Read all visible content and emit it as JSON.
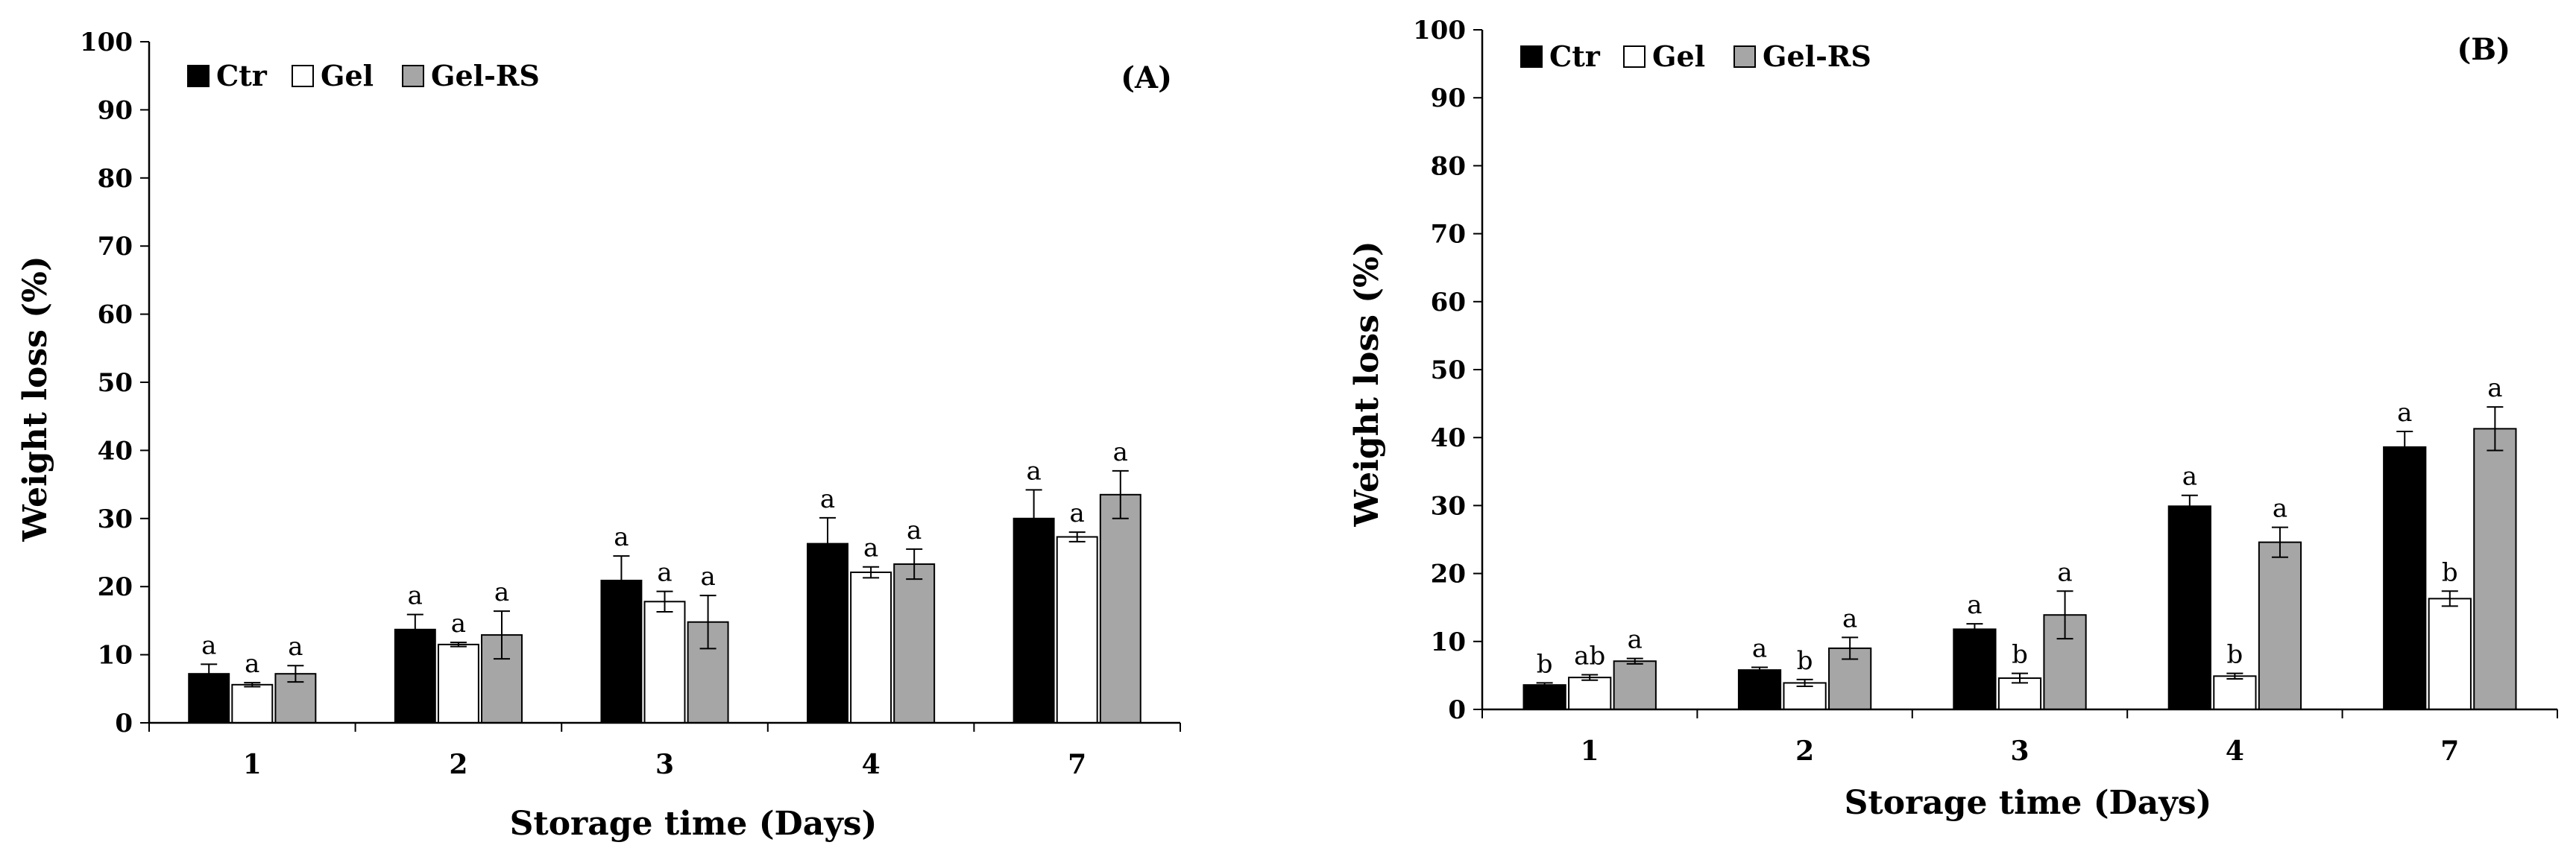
{
  "colors": {
    "Ctr": "#000000",
    "Gel": "#ffffff",
    "Gel-RS": "#a6a6a6",
    "axis": "#000000",
    "background": "#ffffff"
  },
  "chart_data": [
    {
      "type": "bar",
      "panel_label": "(A)",
      "categories": [
        "1",
        "2",
        "3",
        "4",
        "7"
      ],
      "xlabel": "Storage time (Days)",
      "ylabel": "Weight loss (%)",
      "ylim": [
        0,
        100
      ],
      "yticks": [
        0,
        10,
        20,
        30,
        40,
        50,
        60,
        70,
        80,
        90,
        100
      ],
      "grid": false,
      "legend_position": "top-left",
      "series": [
        {
          "name": "Ctr",
          "values": [
            7.2,
            13.7,
            20.9,
            26.3,
            30.0
          ],
          "errors": [
            1.4,
            2.2,
            3.6,
            3.8,
            4.2
          ],
          "labels": [
            "a",
            "a",
            "a",
            "a",
            "a"
          ]
        },
        {
          "name": "Gel",
          "values": [
            5.6,
            11.5,
            17.8,
            22.1,
            27.3
          ],
          "errors": [
            0.3,
            0.3,
            1.5,
            0.8,
            0.7
          ],
          "labels": [
            "a",
            "a",
            "a",
            "a",
            "a"
          ]
        },
        {
          "name": "Gel-RS",
          "values": [
            7.2,
            12.9,
            14.8,
            23.3,
            33.5
          ],
          "errors": [
            1.2,
            3.5,
            3.9,
            2.2,
            3.5
          ],
          "labels": [
            "a",
            "a",
            "a",
            "a",
            "a"
          ]
        }
      ]
    },
    {
      "type": "bar",
      "panel_label": "(B)",
      "categories": [
        "1",
        "2",
        "3",
        "4",
        "7"
      ],
      "xlabel": "Storage time (Days)",
      "ylabel": "Weight loss (%)",
      "ylim": [
        0,
        100
      ],
      "yticks": [
        0,
        10,
        20,
        30,
        40,
        50,
        60,
        70,
        80,
        90,
        100
      ],
      "grid": false,
      "legend_position": "top-left",
      "series": [
        {
          "name": "Ctr",
          "values": [
            3.6,
            5.8,
            11.8,
            29.9,
            38.6
          ],
          "errors": [
            0.3,
            0.4,
            0.8,
            1.6,
            2.3
          ],
          "labels": [
            "b",
            "a",
            "a",
            "a",
            "a"
          ]
        },
        {
          "name": "Gel",
          "values": [
            4.7,
            3.9,
            4.6,
            4.9,
            16.3
          ],
          "errors": [
            0.4,
            0.5,
            0.7,
            0.4,
            1.1
          ],
          "labels": [
            "ab",
            "b",
            "b",
            "b",
            "b"
          ]
        },
        {
          "name": "Gel-RS",
          "values": [
            7.1,
            9.0,
            13.9,
            24.6,
            41.3
          ],
          "errors": [
            0.4,
            1.6,
            3.5,
            2.2,
            3.2
          ],
          "labels": [
            "a",
            "a",
            "a",
            "a",
            "a"
          ]
        }
      ]
    }
  ]
}
